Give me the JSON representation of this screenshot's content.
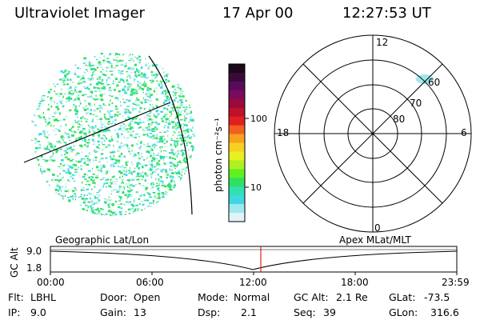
{
  "header": {
    "title": "Ultraviolet Imager",
    "date": "17 Apr 00",
    "time": "12:27:53 UT"
  },
  "colorbar": {
    "unit_label": "photon cm⁻²s⁻¹",
    "ticks": [
      "100",
      "10"
    ],
    "colors": [
      "#1a0a1a",
      "#3a0a3a",
      "#5a0a5a",
      "#7a0a5a",
      "#9a0a3a",
      "#c0102a",
      "#e02020",
      "#f06020",
      "#f8a020",
      "#f8d020",
      "#e8f020",
      "#b0f020",
      "#60f020",
      "#30e060",
      "#30e0b0",
      "#40d8e0",
      "#a0e8f0",
      "#e0f4f8"
    ]
  },
  "polar": {
    "mlt_labels": [
      "12",
      "18",
      "6",
      "0"
    ],
    "lat_labels": [
      "60",
      "70",
      "80"
    ]
  },
  "timeline": {
    "left_label": "Geographic Lat/Lon",
    "right_label": "Apex MLat/MLT",
    "y_axis_label": "GC Alt",
    "y_ticks": [
      "9.0",
      "1.8"
    ],
    "x_ticks": [
      "00:00",
      "06:00",
      "12:00",
      "18:00",
      "23:59"
    ],
    "marker_color": "#e02020"
  },
  "info": {
    "flt_label": "Flt:",
    "flt_value": "LBHL",
    "door_label": "Door:",
    "door_value": "Open",
    "mode_label": "Mode:",
    "mode_value": "Normal",
    "gcalt_label": "GC Alt:",
    "gcalt_value": "2.1 Re",
    "glat_label": "GLat:",
    "glat_value": "-73.5",
    "ip_label": "IP:",
    "ip_value": "9.0",
    "gain_label": "Gain:",
    "gain_value": "13",
    "dsp_label": "Dsp:",
    "dsp_value": "2.1",
    "seq_label": "Seq:",
    "seq_value": "39",
    "glon_label": "GLon:",
    "glon_value": "316.6"
  },
  "colors": {
    "speckle_green": "#30e060",
    "speckle_cyan": "#40d8e0",
    "speckle_light": "#a0e8f0"
  }
}
